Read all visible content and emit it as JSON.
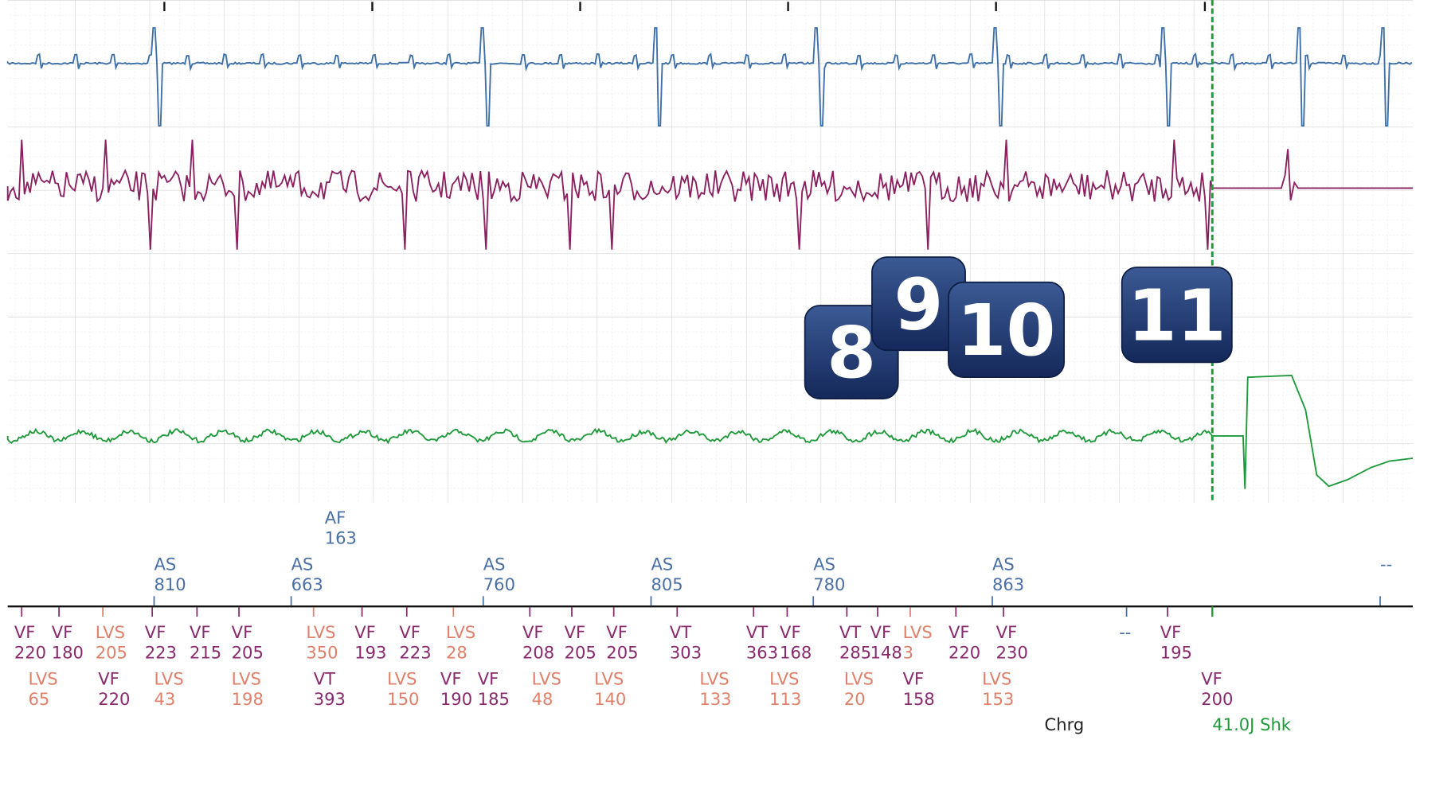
{
  "badges": [
    "8",
    "9",
    "10",
    "11"
  ],
  "atrial_top": [
    {
      "label": "AF",
      "interval": 163
    }
  ],
  "atrial": [
    {
      "label": "AS",
      "interval": 810
    },
    {
      "label": "AS",
      "interval": 663
    },
    {
      "label": "AS",
      "interval": 760
    },
    {
      "label": "AS",
      "interval": 805
    },
    {
      "label": "AS",
      "interval": 780
    },
    {
      "label": "AS",
      "interval": 863
    },
    {
      "label": "--"
    }
  ],
  "ventricular_row1": [
    {
      "label": "VF",
      "interval": 220
    },
    {
      "label": "VF",
      "interval": 180
    },
    {
      "label": "LVS",
      "interval": 205
    },
    {
      "label": "VF",
      "interval": 223
    },
    {
      "label": "VF",
      "interval": 215
    },
    {
      "label": "VF",
      "interval": 205
    },
    {
      "label": "LVS",
      "interval": 350
    },
    {
      "label": "VF",
      "interval": 193
    },
    {
      "label": "VF",
      "interval": 223
    },
    {
      "label": "LVS",
      "interval": 28
    },
    {
      "label": "VF",
      "interval": 208
    },
    {
      "label": "VF",
      "interval": 205
    },
    {
      "label": "VF",
      "interval": 205
    },
    {
      "label": "VT",
      "interval": 303
    },
    {
      "label": "VT",
      "interval": 363
    },
    {
      "label": "VF",
      "interval": 168
    },
    {
      "label": "VT",
      "interval": 285
    },
    {
      "label": "VF",
      "interval": 148
    },
    {
      "label": "LVS",
      "interval": 3
    },
    {
      "label": "VF",
      "interval": 220
    },
    {
      "label": "VF",
      "interval": 230
    },
    {
      "label": "--"
    },
    {
      "label": "VF",
      "interval": 195
    }
  ],
  "ventricular_row2": [
    {
      "label": "LVS",
      "interval": 65
    },
    {
      "label": "VF",
      "interval": 220
    },
    {
      "label": "LVS",
      "interval": 43
    },
    {
      "label": "LVS",
      "interval": 198
    },
    {
      "label": "VT",
      "interval": 393
    },
    {
      "label": "LVS",
      "interval": 150
    },
    {
      "label": "VF",
      "interval": 190
    },
    {
      "label": "VF",
      "interval": 185
    },
    {
      "label": "LVS",
      "interval": 48
    },
    {
      "label": "LVS",
      "interval": 140
    },
    {
      "label": "LVS",
      "interval": 133
    },
    {
      "label": "LVS",
      "interval": 113
    },
    {
      "label": "LVS",
      "interval": 20
    },
    {
      "label": "VF",
      "interval": 158
    },
    {
      "label": "LVS",
      "interval": 153
    },
    {
      "label": "VF",
      "interval": 200
    }
  ],
  "events": [
    "Chrg",
    "41.0J Shk"
  ]
}
